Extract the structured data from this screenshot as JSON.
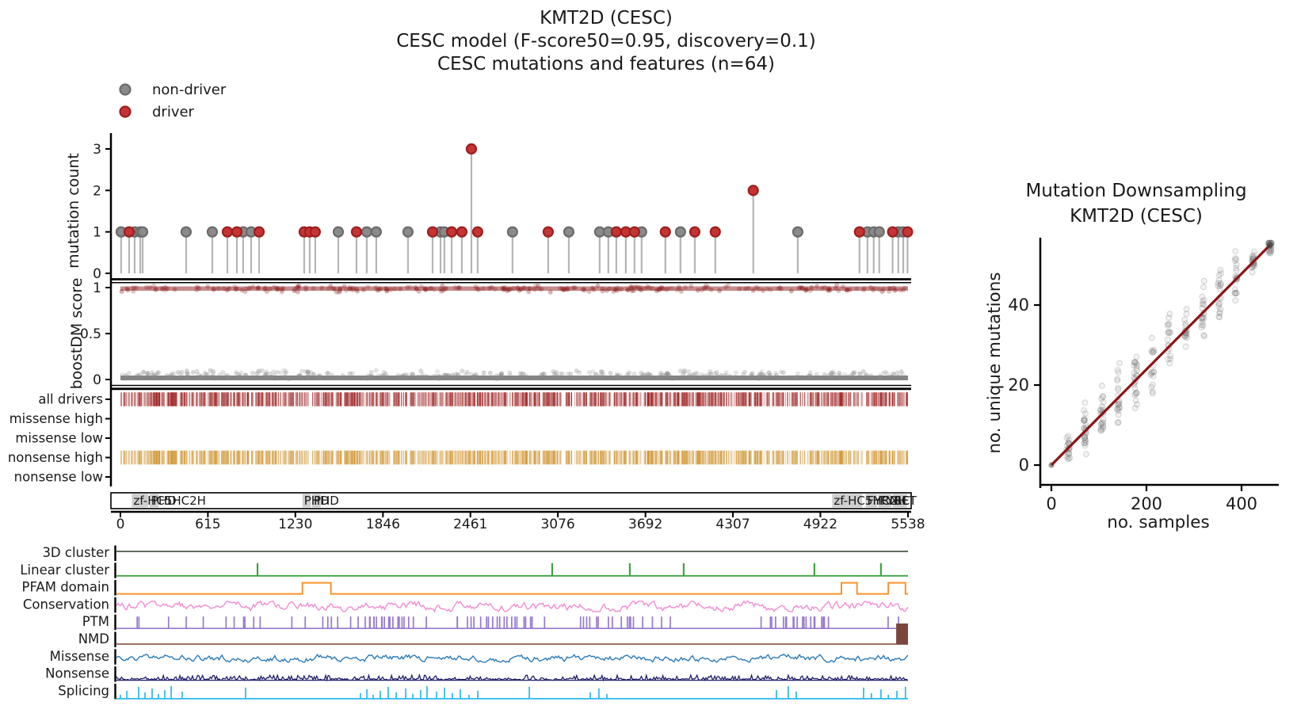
{
  "figure": {
    "background": "#ffffff",
    "title_lines": [
      "KMT2D (CESC)",
      "CESC model (F-score50=0.95, discovery=0.1)",
      "CESC mutations and features (n=64)"
    ]
  },
  "legend": {
    "items": [
      {
        "label": "non-driver",
        "fill": "#8a8a8a",
        "edge": "#6b6b6b"
      },
      {
        "label": "driver",
        "fill": "#c53434",
        "edge": "#9c1f1f"
      }
    ]
  },
  "chart_data": [
    {
      "id": "mutation_needle",
      "type": "scatter",
      "style": "lollipop",
      "ylabel": "mutation count",
      "yticks": [
        0,
        1,
        2,
        3
      ],
      "xlim": [
        0,
        5538
      ],
      "stem_color": "#a8a8a8",
      "points": [
        {
          "pos": 5,
          "count": 1,
          "driver": false
        },
        {
          "pos": 61,
          "count": 1,
          "driver": true
        },
        {
          "pos": 100,
          "count": 1,
          "driver": false
        },
        {
          "pos": 139,
          "count": 1,
          "driver": false
        },
        {
          "pos": 156,
          "count": 1,
          "driver": false
        },
        {
          "pos": 462,
          "count": 1,
          "driver": false
        },
        {
          "pos": 646,
          "count": 1,
          "driver": false
        },
        {
          "pos": 752,
          "count": 1,
          "driver": true
        },
        {
          "pos": 819,
          "count": 1,
          "driver": true
        },
        {
          "pos": 863,
          "count": 1,
          "driver": false
        },
        {
          "pos": 919,
          "count": 1,
          "driver": false
        },
        {
          "pos": 975,
          "count": 1,
          "driver": true
        },
        {
          "pos": 1292,
          "count": 1,
          "driver": true
        },
        {
          "pos": 1331,
          "count": 1,
          "driver": true
        },
        {
          "pos": 1370,
          "count": 1,
          "driver": true
        },
        {
          "pos": 1532,
          "count": 1,
          "driver": false
        },
        {
          "pos": 1660,
          "count": 1,
          "driver": true
        },
        {
          "pos": 1732,
          "count": 1,
          "driver": false
        },
        {
          "pos": 1799,
          "count": 1,
          "driver": false
        },
        {
          "pos": 2022,
          "count": 1,
          "driver": false
        },
        {
          "pos": 2195,
          "count": 1,
          "driver": true
        },
        {
          "pos": 2251,
          "count": 1,
          "driver": false
        },
        {
          "pos": 2278,
          "count": 1,
          "driver": false
        },
        {
          "pos": 2329,
          "count": 1,
          "driver": true
        },
        {
          "pos": 2401,
          "count": 1,
          "driver": true
        },
        {
          "pos": 2468,
          "count": 3,
          "driver": true
        },
        {
          "pos": 2512,
          "count": 1,
          "driver": true
        },
        {
          "pos": 2757,
          "count": 1,
          "driver": false
        },
        {
          "pos": 3008,
          "count": 1,
          "driver": true
        },
        {
          "pos": 3153,
          "count": 1,
          "driver": false
        },
        {
          "pos": 3370,
          "count": 1,
          "driver": false
        },
        {
          "pos": 3431,
          "count": 1,
          "driver": false
        },
        {
          "pos": 3487,
          "count": 1,
          "driver": true
        },
        {
          "pos": 3554,
          "count": 1,
          "driver": true
        },
        {
          "pos": 3615,
          "count": 1,
          "driver": true
        },
        {
          "pos": 3665,
          "count": 1,
          "driver": false
        },
        {
          "pos": 3832,
          "count": 1,
          "driver": true
        },
        {
          "pos": 3938,
          "count": 1,
          "driver": false
        },
        {
          "pos": 4039,
          "count": 1,
          "driver": true
        },
        {
          "pos": 4183,
          "count": 1,
          "driver": true
        },
        {
          "pos": 4450,
          "count": 2,
          "driver": true
        },
        {
          "pos": 4763,
          "count": 1,
          "driver": false
        },
        {
          "pos": 5197,
          "count": 1,
          "driver": true
        },
        {
          "pos": 5253,
          "count": 1,
          "driver": false
        },
        {
          "pos": 5297,
          "count": 1,
          "driver": false
        },
        {
          "pos": 5336,
          "count": 1,
          "driver": false
        },
        {
          "pos": 5430,
          "count": 1,
          "driver": true
        },
        {
          "pos": 5470,
          "count": 1,
          "driver": false
        },
        {
          "pos": 5505,
          "count": 1,
          "driver": false
        },
        {
          "pos": 5535,
          "count": 1,
          "driver": true
        }
      ]
    },
    {
      "id": "boostdm_score",
      "type": "scatter",
      "ylabel": "boostDM score",
      "yticks": [
        0,
        0.5,
        1
      ],
      "bands": [
        {
          "label": "driver scores",
          "score_range": [
            0.95,
            1.0
          ],
          "color": "#8b1a1a",
          "n_points": 280
        },
        {
          "label": "non-driver scores",
          "score_range": [
            0.0,
            0.08
          ],
          "color": "#7d7d7d",
          "n_points": 360
        }
      ]
    },
    {
      "id": "driver_tracks",
      "type": "heatmap",
      "fill_density": 0.82,
      "rows": [
        {
          "label": "all drivers",
          "color": "#9b1c1c",
          "filled": true
        },
        {
          "label": "missense high",
          "color": "#9b1c1c",
          "filled": false
        },
        {
          "label": "missense low",
          "color": "#9b1c1c",
          "filled": false
        },
        {
          "label": "nonsense high",
          "color": "#cf9430",
          "filled": true
        },
        {
          "label": "nonsense low",
          "color": "#cf9430",
          "filled": false
        }
      ]
    },
    {
      "id": "protein_domains",
      "type": "table",
      "xticks": [
        0,
        615,
        1230,
        1846,
        2461,
        3076,
        3692,
        4307,
        4922,
        5538
      ],
      "domain_fill": "#c9c9c9",
      "domains": [
        {
          "label": "zf-HC5HC2H",
          "start": 80,
          "end": 195
        },
        {
          "label": "PHD",
          "start": 205,
          "end": 270
        },
        {
          "label": "PHD",
          "start": 1280,
          "end": 1340
        },
        {
          "label": "PHD",
          "start": 1348,
          "end": 1408
        },
        {
          "label": "zf-HC5HC2H",
          "start": 5005,
          "end": 5215
        },
        {
          "label": "FYRN",
          "start": 5240,
          "end": 5320
        },
        {
          "label": "FYRC",
          "start": 5328,
          "end": 5420
        },
        {
          "label": "SET",
          "start": 5430,
          "end": 5530
        }
      ]
    },
    {
      "id": "feature_tracks",
      "type": "line",
      "rows": [
        {
          "label": "3D cluster",
          "color": "#4a5a44",
          "kind": "flat"
        },
        {
          "label": "Linear cluster",
          "color": "#41a341",
          "kind": "spikes",
          "spikes": [
            964,
            3036,
            3582,
            3961,
            4880,
            5348
          ]
        },
        {
          "label": "PFAM domain",
          "color": "#f7942c",
          "kind": "steps",
          "bumps": [
            [
              1280,
              1480
            ],
            [
              5070,
              5180
            ],
            [
              5400,
              5520
            ]
          ]
        },
        {
          "label": "Conservation",
          "color": "#f08cd4",
          "kind": "noise",
          "amplitude": 6
        },
        {
          "label": "PTM",
          "color": "#9779ce",
          "kind": "bars",
          "n_bars": 92
        },
        {
          "label": "NMD",
          "color": "#8d5c50",
          "kind": "flat",
          "end_block": [
            5455,
            5538
          ],
          "end_block_color": "#7c463c"
        },
        {
          "label": "Missense",
          "color": "#2b7bb9",
          "kind": "noise",
          "amplitude": 4.5
        },
        {
          "label": "Nonsense",
          "color": "#20206b",
          "kind": "noise_floor",
          "amplitude": 3
        },
        {
          "label": "Splicing",
          "color": "#2cb8e8",
          "kind": "bars_listed",
          "bars": [
            0,
            45,
            128,
            173,
            223,
            267,
            312,
            357,
            434,
            880,
            1688,
            1733,
            1777,
            1827,
            1883,
            1939,
            2006,
            2056,
            2111,
            2156,
            2223,
            2279,
            2334,
            2390,
            2451,
            2513,
            2875,
            3304,
            3365,
            3421,
            4613,
            4696,
            4752,
            5226,
            5281,
            5348,
            5400,
            5460,
            5520
          ]
        }
      ]
    },
    {
      "id": "mutation_downsampling",
      "type": "scatter",
      "title_lines": [
        "Mutation Downsampling",
        "KMT2D (CESC)"
      ],
      "xlabel": "no. samples",
      "ylabel": "no. unique mutations",
      "xticks": [
        0,
        200,
        400
      ],
      "yticks": [
        0,
        20,
        40
      ],
      "x_max": 460,
      "n_columns": 14,
      "y_at_xmax": 55,
      "dot_color": "#8a8a8a",
      "line": {
        "from": [
          0,
          0
        ],
        "to": [
          460,
          55
        ],
        "color": "#8b1414"
      }
    }
  ]
}
